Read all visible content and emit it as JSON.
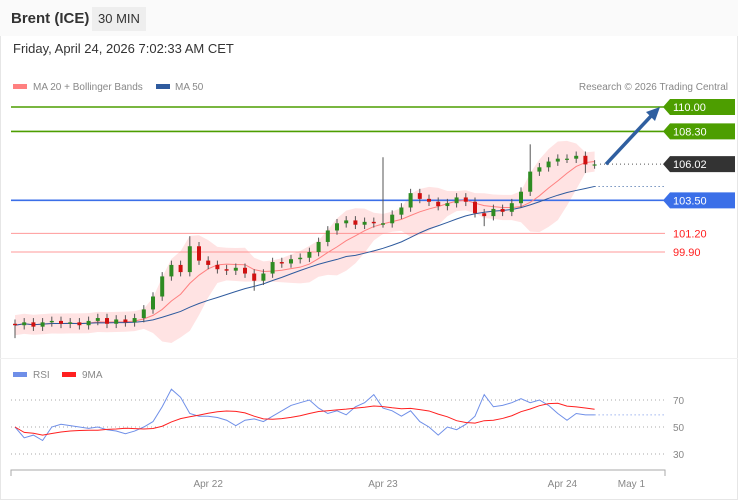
{
  "header": {
    "title": "Brent (ICE)",
    "timeframe": "30 MIN",
    "datetime": "Friday, April 24, 2026 7:02:33 AM CET"
  },
  "credit": "Research © 2026 Trading Central",
  "colors": {
    "ma20": "#ff8080",
    "ma50": "#2f5b9e",
    "band": "#ffdada",
    "resistance": "#4d9e00",
    "support": "#ff8080",
    "pivot": "#3b6fe8",
    "last": "#333333",
    "arrow": "#2f5fa0",
    "bull": "#2e8b22",
    "bear": "#d01010",
    "rsi": "#6f8fe8",
    "rsi_ma": "#ff2020"
  },
  "chart_data": [
    {
      "type": "candlestick",
      "legend": [
        {
          "name": "MA 20 + Bollinger Bands",
          "color": "#ff8080"
        },
        {
          "name": "MA 50",
          "color": "#2f5b9e"
        }
      ],
      "ylim": [
        93,
        111.3
      ],
      "levels": [
        {
          "value": 110.0,
          "label": "110.00",
          "kind": "resistance"
        },
        {
          "value": 108.3,
          "label": "108.30",
          "kind": "resistance"
        },
        {
          "value": 106.02,
          "label": "106.02",
          "kind": "last"
        },
        {
          "value": 103.5,
          "label": "103.50",
          "kind": "pivot"
        },
        {
          "value": 101.2,
          "label": "101.20",
          "kind": "support"
        },
        {
          "value": 99.9,
          "label": "99.90",
          "kind": "support"
        }
      ],
      "forecast_arrow": {
        "from": 106.02,
        "to": 110.0
      },
      "ohlc": [
        [
          94.9,
          95.2,
          93.9,
          94.8
        ],
        [
          94.8,
          95.3,
          94.5,
          95.0
        ],
        [
          95.0,
          95.3,
          94.4,
          94.7
        ],
        [
          94.7,
          95.3,
          94.4,
          95.0
        ],
        [
          95.0,
          95.4,
          94.7,
          95.1
        ],
        [
          95.1,
          95.4,
          94.6,
          94.9
        ],
        [
          94.9,
          95.3,
          94.6,
          95.0
        ],
        [
          95.0,
          95.3,
          94.5,
          94.8
        ],
        [
          94.8,
          95.4,
          94.5,
          95.1
        ],
        [
          95.1,
          95.6,
          94.8,
          95.3
        ],
        [
          95.3,
          95.6,
          94.6,
          94.9
        ],
        [
          94.9,
          95.5,
          94.6,
          95.2
        ],
        [
          95.2,
          95.5,
          94.7,
          95.0
        ],
        [
          95.0,
          95.6,
          94.7,
          95.3
        ],
        [
          95.3,
          96.2,
          95.0,
          95.9
        ],
        [
          95.9,
          97.1,
          95.6,
          96.8
        ],
        [
          96.8,
          98.5,
          96.5,
          98.2
        ],
        [
          98.2,
          99.3,
          97.9,
          99.0
        ],
        [
          99.0,
          99.3,
          98.2,
          98.5
        ],
        [
          98.5,
          101.0,
          98.2,
          100.3
        ],
        [
          100.3,
          100.6,
          99.0,
          99.3
        ],
        [
          99.3,
          99.6,
          98.7,
          99.0
        ],
        [
          99.0,
          99.3,
          98.4,
          98.7
        ],
        [
          98.7,
          99.0,
          98.3,
          98.6
        ],
        [
          98.6,
          99.1,
          98.3,
          98.8
        ],
        [
          98.8,
          99.1,
          98.1,
          98.4
        ],
        [
          98.4,
          98.7,
          97.2,
          97.9
        ],
        [
          97.9,
          98.7,
          97.6,
          98.4
        ],
        [
          98.4,
          99.5,
          98.1,
          99.2
        ],
        [
          99.2,
          99.5,
          98.8,
          99.1
        ],
        [
          99.1,
          99.7,
          98.8,
          99.4
        ],
        [
          99.4,
          99.8,
          99.1,
          99.5
        ],
        [
          99.5,
          100.2,
          99.2,
          99.9
        ],
        [
          99.9,
          100.9,
          99.6,
          100.6
        ],
        [
          100.6,
          101.7,
          100.3,
          101.4
        ],
        [
          101.4,
          102.2,
          101.1,
          101.9
        ],
        [
          101.9,
          102.4,
          101.6,
          102.1
        ],
        [
          102.1,
          102.4,
          101.5,
          101.8
        ],
        [
          101.8,
          102.3,
          101.5,
          102.0
        ],
        [
          102.0,
          102.3,
          101.6,
          101.9
        ],
        [
          101.8,
          106.5,
          101.6,
          101.9
        ],
        [
          101.9,
          102.8,
          101.6,
          102.5
        ],
        [
          102.5,
          103.3,
          102.2,
          103.0
        ],
        [
          103.0,
          104.3,
          102.7,
          104.0
        ],
        [
          104.0,
          104.3,
          103.3,
          103.6
        ],
        [
          103.6,
          103.9,
          103.1,
          103.4
        ],
        [
          103.4,
          103.7,
          102.8,
          103.1
        ],
        [
          103.1,
          103.6,
          102.8,
          103.3
        ],
        [
          103.3,
          104.0,
          103.0,
          103.7
        ],
        [
          103.7,
          104.0,
          103.1,
          103.4
        ],
        [
          103.4,
          103.7,
          102.3,
          102.6
        ],
        [
          102.6,
          102.9,
          101.7,
          102.4
        ],
        [
          102.4,
          103.2,
          102.1,
          102.9
        ],
        [
          102.9,
          103.2,
          102.4,
          102.7
        ],
        [
          102.7,
          103.6,
          102.4,
          103.3
        ],
        [
          103.3,
          104.4,
          103.0,
          104.1
        ],
        [
          104.1,
          107.4,
          103.8,
          105.5
        ],
        [
          105.5,
          106.1,
          105.2,
          105.8
        ],
        [
          105.8,
          106.5,
          105.5,
          106.2
        ],
        [
          106.2,
          106.7,
          105.9,
          106.4
        ],
        [
          106.4,
          106.7,
          106.1,
          106.4
        ],
        [
          106.4,
          106.9,
          106.1,
          106.6
        ],
        [
          106.6,
          106.9,
          105.4,
          106.0
        ],
        [
          106.0,
          106.3,
          105.7,
          106.0
        ]
      ]
    },
    {
      "type": "line",
      "legend": [
        {
          "name": "RSI",
          "color": "#6f8fe8"
        },
        {
          "name": "9MA",
          "color": "#ff2020"
        }
      ],
      "ylim": [
        20,
        85
      ],
      "y_ticks": [
        {
          "value": 70,
          "label": "70"
        },
        {
          "value": 50,
          "label": "50"
        },
        {
          "value": 30,
          "label": "30"
        }
      ],
      "rsi": [
        50,
        42,
        44,
        40,
        50,
        52,
        51,
        50,
        49,
        50,
        48,
        47,
        45,
        47,
        50,
        54,
        65,
        78,
        72,
        60,
        58,
        58,
        57,
        55,
        51,
        55,
        56,
        54,
        58,
        62,
        66,
        68,
        70,
        64,
        60,
        62,
        59,
        65,
        68,
        74,
        64,
        62,
        58,
        62,
        54,
        50,
        44,
        50,
        48,
        52,
        58,
        74,
        65,
        66,
        68,
        71,
        68,
        70,
        66,
        60,
        55,
        60,
        59,
        59
      ],
      "last_value": 59
    }
  ],
  "x_ticks": [
    {
      "label": "Apr 22",
      "index": 21
    },
    {
      "label": "Apr 23",
      "index": 40
    },
    {
      "label": "Apr 24",
      "index": 59.5
    },
    {
      "label": "May 1",
      "index": 67
    }
  ]
}
